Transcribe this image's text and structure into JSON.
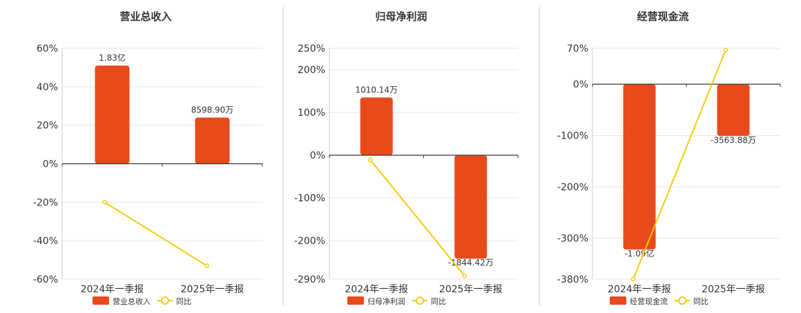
{
  "colors": {
    "bar": "#E84A1C",
    "line": "#F2CC0C",
    "grid": "#E6E6E6",
    "axis": "#333333",
    "divider": "#C8C8C8",
    "text": "#333333"
  },
  "chart_data": [
    {
      "type": "bar",
      "title": "营业总收入",
      "categories": [
        "2024年一季报",
        "2025年一季报"
      ],
      "yticks": [
        "60%",
        "40%",
        "20%",
        "0%",
        "-20%",
        "-40%",
        "-60%"
      ],
      "tick_values": [
        60,
        40,
        20,
        0,
        -20,
        -40,
        -60
      ],
      "ylim": [
        -60,
        60
      ],
      "series": [
        {
          "name": "营业总收入",
          "kind": "bar",
          "values": [
            51,
            24
          ],
          "labels": [
            "1.83亿",
            "8598.90万"
          ]
        },
        {
          "name": "同比",
          "kind": "line",
          "values": [
            -20,
            -53
          ]
        }
      ]
    },
    {
      "type": "bar",
      "title": "归母净利润",
      "categories": [
        "2024年一季报",
        "2025年一季报"
      ],
      "yticks": [
        "250%",
        "200%",
        "100%",
        "0%",
        "-100%",
        "-200%",
        "-290%"
      ],
      "tick_values": [
        250,
        200,
        100,
        0,
        -100,
        -200,
        -290
      ],
      "ylim": [
        -290,
        250
      ],
      "series": [
        {
          "name": "归母净利润",
          "kind": "bar",
          "values": [
            135,
            -242
          ],
          "labels": [
            "1010.14万",
            "-1844.42万"
          ]
        },
        {
          "name": "同比",
          "kind": "line",
          "values": [
            -11,
            -282
          ]
        }
      ]
    },
    {
      "type": "bar",
      "title": "经营现金流",
      "categories": [
        "2024年一季报",
        "2025年一季报"
      ],
      "yticks": [
        "70%",
        "0%",
        "-100%",
        "-200%",
        "-300%",
        "-380%"
      ],
      "tick_values": [
        70,
        0,
        -100,
        -200,
        -300,
        -380
      ],
      "ylim": [
        -380,
        70
      ],
      "series": [
        {
          "name": "经营现金流",
          "kind": "bar",
          "values": [
            -322,
            -101
          ],
          "labels": [
            "-1.09亿",
            "-3563.88万"
          ]
        },
        {
          "name": "同比",
          "kind": "line",
          "values": [
            -380,
            67
          ]
        }
      ]
    }
  ]
}
